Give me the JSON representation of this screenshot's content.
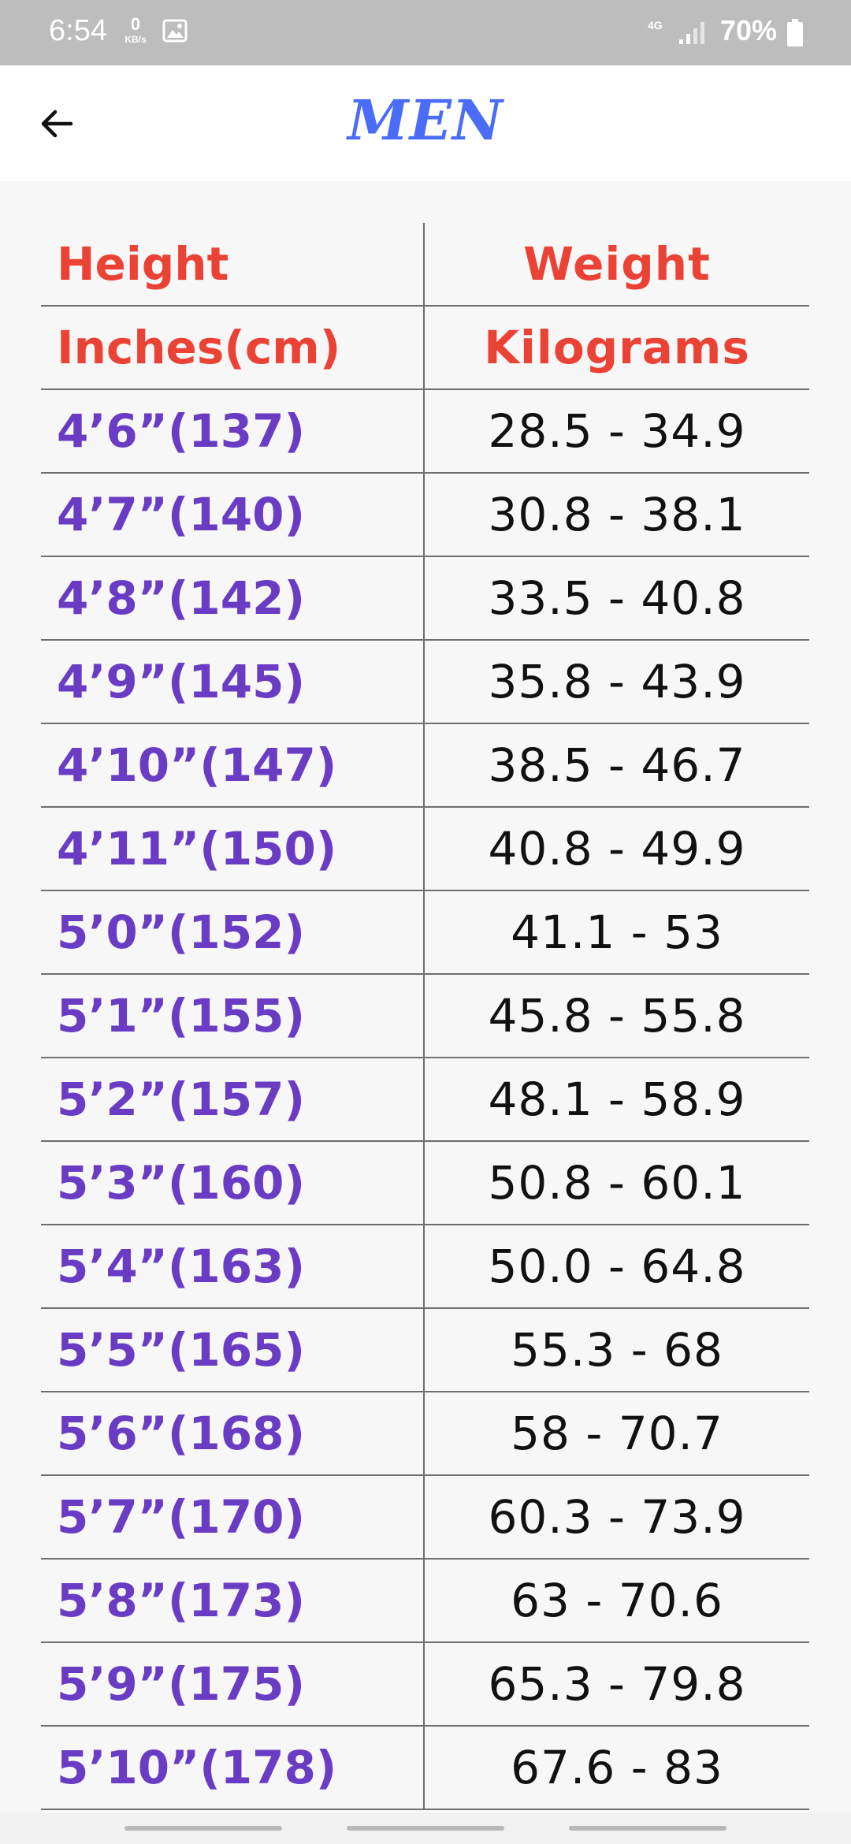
{
  "status_bar": {
    "time": "6:54",
    "speed_value": "0",
    "speed_unit": "KB/s",
    "network": "4G",
    "battery": "70%"
  },
  "app_bar": {
    "title": "MEN",
    "back_icon": "arrow-left-icon"
  },
  "table": {
    "header": [
      {
        "left": "Height",
        "right": "Weight"
      },
      {
        "left": "Inches(cm)",
        "right": "Kilograms"
      }
    ],
    "rows": [
      {
        "height": "4’6”(137)",
        "weight": "28.5 - 34.9"
      },
      {
        "height": "4’7”(140)",
        "weight": "30.8 - 38.1"
      },
      {
        "height": "4’8”(142)",
        "weight": "33.5 - 40.8"
      },
      {
        "height": "4’9”(145)",
        "weight": "35.8 - 43.9"
      },
      {
        "height": "4’10”(147)",
        "weight": "38.5 - 46.7"
      },
      {
        "height": "4’11”(150)",
        "weight": "40.8 - 49.9"
      },
      {
        "height": "5’0”(152)",
        "weight": "41.1 - 53"
      },
      {
        "height": "5’1”(155)",
        "weight": "45.8 - 55.8"
      },
      {
        "height": "5’2”(157)",
        "weight": "48.1 - 58.9"
      },
      {
        "height": "5’3”(160)",
        "weight": "50.8 - 60.1"
      },
      {
        "height": "5’4”(163)",
        "weight": "50.0 - 64.8"
      },
      {
        "height": "5’5”(165)",
        "weight": "55.3 - 68"
      },
      {
        "height": "5’6”(168)",
        "weight": "58 - 70.7"
      },
      {
        "height": "5’7”(170)",
        "weight": "60.3 - 73.9"
      },
      {
        "height": "5’8”(173)",
        "weight": "63 - 70.6"
      },
      {
        "height": "5’9”(175)",
        "weight": "65.3 - 79.8"
      },
      {
        "height": "5’10”(178)",
        "weight": "67.6 - 83"
      }
    ]
  },
  "colors": {
    "title": "#4a6cf7",
    "header_text": "#ea4336",
    "height_text": "#6a3cc4",
    "weight_text": "#111111",
    "status_bar": "#bdbdbd"
  }
}
